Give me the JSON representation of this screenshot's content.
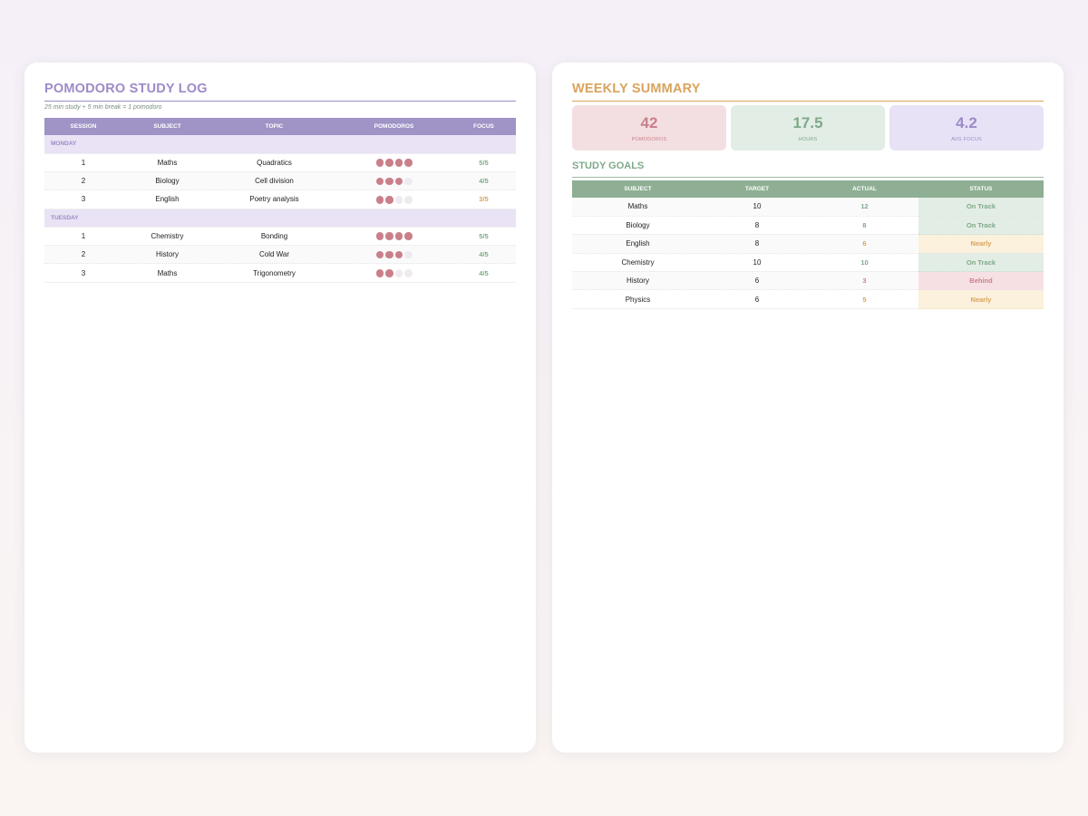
{
  "log": {
    "title": "POMODORO STUDY LOG",
    "subtitle": "25 min study + 5 min break = 1 pomodoro",
    "columns": [
      "SESSION",
      "SUBJECT",
      "TOPIC",
      "POMODOROS",
      "FOCUS"
    ],
    "days": [
      {
        "label": "MONDAY",
        "sessions": [
          {
            "session": "1",
            "subject": "Maths",
            "topic": "Quadratics",
            "pomodoros": 4,
            "focus": "5/5"
          },
          {
            "session": "2",
            "subject": "Biology",
            "topic": "Cell division",
            "pomodoros": 3,
            "focus": "4/5"
          },
          {
            "session": "3",
            "subject": "English",
            "topic": "Poetry analysis",
            "pomodoros": 2,
            "focus": "3/5"
          }
        ]
      },
      {
        "label": "TUESDAY",
        "sessions": [
          {
            "session": "1",
            "subject": "Chemistry",
            "topic": "Bonding",
            "pomodoros": 4,
            "focus": "5/5"
          },
          {
            "session": "2",
            "subject": "History",
            "topic": "Cold War",
            "pomodoros": 3,
            "focus": "4/5"
          },
          {
            "session": "3",
            "subject": "Maths",
            "topic": "Trigonometry",
            "pomodoros": 2,
            "focus": "4/5"
          }
        ]
      }
    ],
    "max_pomodoros": 4
  },
  "summary": {
    "title": "WEEKLY SUMMARY",
    "stats": [
      {
        "value": "42",
        "label": "POMODOROS"
      },
      {
        "value": "17.5",
        "label": "HOURS"
      },
      {
        "value": "4.2",
        "label": "AVG FOCUS"
      }
    ]
  },
  "goals": {
    "title": "STUDY GOALS",
    "columns": [
      "SUBJECT",
      "TARGET",
      "ACTUAL",
      "STATUS"
    ],
    "rows": [
      {
        "subject": "Maths",
        "target": "10",
        "actual": "12",
        "status": "On Track"
      },
      {
        "subject": "Biology",
        "target": "8",
        "actual": "8",
        "status": "On Track"
      },
      {
        "subject": "English",
        "target": "8",
        "actual": "6",
        "status": "Nearly"
      },
      {
        "subject": "Chemistry",
        "target": "10",
        "actual": "10",
        "status": "On Track"
      },
      {
        "subject": "History",
        "target": "6",
        "actual": "3",
        "status": "Behind"
      },
      {
        "subject": "Physics",
        "target": "6",
        "actual": "5",
        "status": "Nearly"
      }
    ]
  },
  "colors": {
    "purple_accent": "#9d8bc8",
    "gold_accent": "#d9a35c",
    "green_accent": "#7fa98a",
    "pink_accent": "#c9808a"
  }
}
